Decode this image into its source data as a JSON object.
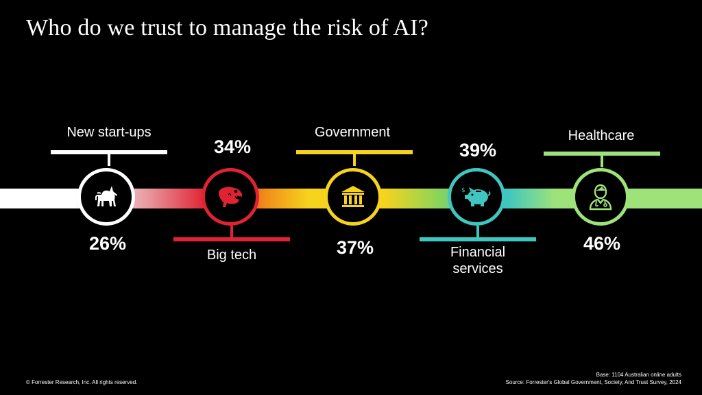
{
  "slide": {
    "title": "Who do we trust to manage the risk of AI?"
  },
  "colors": {
    "start_ups": "#ffffff",
    "big_tech": "#e02232",
    "government": "#f6d31c",
    "financial": "#3fc6c0",
    "healthcare": "#9ee37a"
  },
  "items": [
    {
      "label": "New start-ups",
      "percent": "26%",
      "icon": "unicorn-icon"
    },
    {
      "label": "Big tech",
      "percent": "34%",
      "icon": "dinosaur-icon"
    },
    {
      "label": "Government",
      "percent": "37%",
      "icon": "government-building-icon"
    },
    {
      "label": "Financial\nservices",
      "label_line1": "Financial",
      "label_line2": "services",
      "percent": "39%",
      "icon": "piggy-bank-icon"
    },
    {
      "label": "Healthcare",
      "percent": "46%",
      "icon": "doctor-icon"
    }
  ],
  "footer": {
    "copyright": "© Forrester Research, Inc. All rights reserved.",
    "base": "Base: 1104 Australian online adults",
    "source": "Source: Forrester's Global Government, Society, And Trust Survey, 2024"
  }
}
